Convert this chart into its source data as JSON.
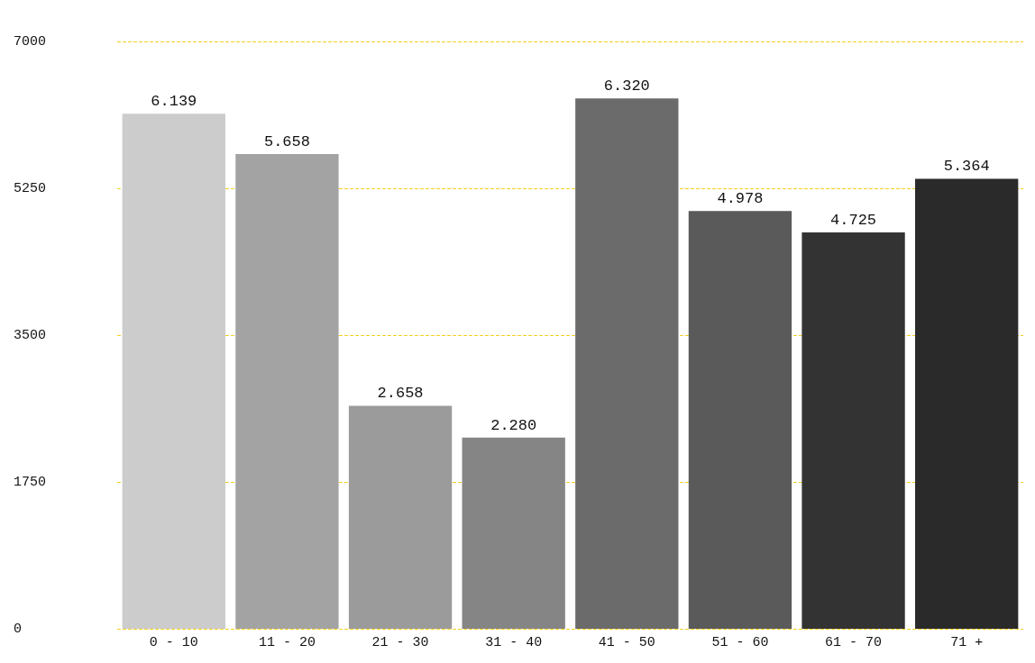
{
  "chart_data": {
    "type": "bar",
    "categories": [
      "0 - 10",
      "11 - 20",
      "21 - 30",
      "31 - 40",
      "41 - 50",
      "51 - 60",
      "61 - 70",
      "71 +"
    ],
    "values": [
      6139,
      5658,
      2658,
      2280,
      6320,
      4978,
      4725,
      5364
    ],
    "value_labels": [
      "6.139",
      "5.658",
      "2.658",
      "2.280",
      "6.320",
      "4.978",
      "4.725",
      "5.364"
    ],
    "colors": [
      "#cccccc",
      "#a3a3a3",
      "#9b9b9b",
      "#858585",
      "#6b6b6b",
      "#5a5a5a",
      "#333333",
      "#2a2a2a"
    ],
    "ylim": [
      0,
      7000
    ],
    "yticks": [
      0,
      1750,
      3500,
      5250,
      7000
    ],
    "grid": true
  }
}
